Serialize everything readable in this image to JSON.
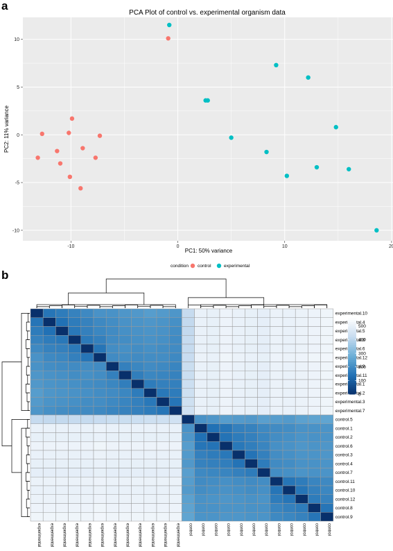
{
  "panels": {
    "a": "a",
    "b": "b"
  },
  "chart_data": [
    {
      "type": "scatter",
      "title": "PCA Plot of control vs. experimental organism data",
      "xlabel": "PC1: 50% variance",
      "ylabel": "PC2: 11% variance",
      "xlim": [
        -14.5,
        20.2
      ],
      "ylim": [
        -11.1,
        12.3
      ],
      "xticks": [
        -10,
        0,
        10,
        20
      ],
      "yticks": [
        -10,
        -5,
        0,
        5,
        10
      ],
      "grid": true,
      "background": "#ebebeb",
      "legend": {
        "title": "condition",
        "position": "bottom"
      },
      "series": [
        {
          "name": "control",
          "color": "#f8766d",
          "points": [
            [
              -0.9,
              10.1
            ],
            [
              -12.7,
              0.1
            ],
            [
              -10.2,
              0.2
            ],
            [
              -9.9,
              1.7
            ],
            [
              -7.3,
              -0.1
            ],
            [
              -11.3,
              -1.7
            ],
            [
              -8.9,
              -1.4
            ],
            [
              -13.1,
              -2.4
            ],
            [
              -7.7,
              -2.4
            ],
            [
              -11.0,
              -3.0
            ],
            [
              -10.1,
              -4.4
            ],
            [
              -9.1,
              -5.6
            ]
          ]
        },
        {
          "name": "experimental",
          "color": "#00bfc4",
          "points": [
            [
              -0.8,
              11.5
            ],
            [
              9.2,
              7.3
            ],
            [
              12.2,
              6.0
            ],
            [
              2.6,
              3.6
            ],
            [
              2.8,
              3.6
            ],
            [
              14.8,
              0.8
            ],
            [
              5.0,
              -0.3
            ],
            [
              8.3,
              -1.8
            ],
            [
              13.0,
              -3.4
            ],
            [
              16.0,
              -3.6
            ],
            [
              10.2,
              -4.3
            ],
            [
              18.6,
              -10.0
            ]
          ]
        }
      ]
    },
    {
      "type": "heatmap",
      "rows": [
        "experimental.10",
        "experimental.4",
        "experimental.5",
        "experimental.8",
        "experimental.6",
        "experimental.12",
        "experimental.9",
        "experimental.11",
        "experimental.1",
        "experimental.2",
        "experimental.3",
        "experimental.7",
        "control.5",
        "control.1",
        "control.2",
        "control.6",
        "control.3",
        "control.4",
        "control.7",
        "control.11",
        "control.10",
        "control.12",
        "control.8",
        "control.9"
      ],
      "columns": [
        "experimental",
        "experimental",
        "experimental",
        "experimental",
        "experimental",
        "experimental",
        "experimental",
        "experimental",
        "experimental",
        "experimental",
        "experimental",
        "experimental",
        "control",
        "control",
        "control",
        "control",
        "control",
        "control",
        "control",
        "control",
        "control",
        "control",
        "control",
        "control"
      ],
      "colorbar": {
        "ticks": [
          0,
          100,
          200,
          300,
          400,
          500
        ],
        "min": 0,
        "max": 560,
        "colors": [
          "#08306b",
          "#2171b5",
          "#6baed6",
          "#c6dbef",
          "#ffffff"
        ]
      },
      "note": "distance matrix; values estimated from cell shading",
      "values": [
        [
          0,
          150,
          165,
          180,
          195,
          215,
          215,
          225,
          230,
          240,
          235,
          225,
          420,
          505,
          500,
          515,
          505,
          500,
          495,
          510,
          505,
          510,
          515,
          520
        ],
        [
          150,
          0,
          140,
          165,
          180,
          195,
          205,
          215,
          220,
          225,
          220,
          210,
          415,
          505,
          500,
          515,
          505,
          500,
          495,
          510,
          505,
          510,
          515,
          520
        ],
        [
          165,
          140,
          0,
          155,
          175,
          190,
          200,
          210,
          215,
          220,
          215,
          205,
          415,
          505,
          500,
          515,
          505,
          500,
          495,
          510,
          505,
          510,
          515,
          520
        ],
        [
          180,
          165,
          155,
          0,
          160,
          175,
          200,
          205,
          210,
          215,
          210,
          200,
          420,
          505,
          500,
          515,
          505,
          500,
          495,
          510,
          505,
          510,
          515,
          520
        ],
        [
          195,
          180,
          175,
          160,
          0,
          150,
          205,
          210,
          205,
          210,
          205,
          200,
          420,
          505,
          500,
          515,
          505,
          500,
          495,
          510,
          505,
          510,
          515,
          520
        ],
        [
          215,
          195,
          190,
          175,
          150,
          0,
          200,
          205,
          200,
          205,
          205,
          195,
          425,
          510,
          505,
          520,
          510,
          505,
          500,
          515,
          510,
          515,
          520,
          525
        ],
        [
          215,
          205,
          200,
          200,
          205,
          200,
          0,
          175,
          190,
          200,
          195,
          185,
          430,
          505,
          500,
          515,
          505,
          500,
          495,
          510,
          505,
          510,
          515,
          520
        ],
        [
          225,
          215,
          210,
          205,
          210,
          205,
          175,
          0,
          170,
          190,
          185,
          180,
          430,
          505,
          500,
          515,
          505,
          500,
          495,
          510,
          505,
          510,
          515,
          520
        ],
        [
          230,
          220,
          215,
          210,
          205,
          200,
          190,
          170,
          0,
          165,
          175,
          175,
          435,
          505,
          500,
          515,
          505,
          500,
          495,
          510,
          505,
          510,
          515,
          520
        ],
        [
          240,
          225,
          220,
          215,
          210,
          205,
          200,
          190,
          165,
          0,
          155,
          165,
          440,
          505,
          500,
          515,
          505,
          500,
          495,
          510,
          505,
          510,
          515,
          520
        ],
        [
          235,
          220,
          215,
          210,
          205,
          205,
          195,
          185,
          175,
          155,
          0,
          150,
          440,
          505,
          500,
          515,
          505,
          500,
          495,
          510,
          505,
          510,
          515,
          520
        ],
        [
          225,
          210,
          205,
          200,
          200,
          195,
          185,
          180,
          175,
          165,
          150,
          0,
          445,
          505,
          500,
          515,
          505,
          500,
          495,
          510,
          505,
          510,
          515,
          520
        ],
        [
          420,
          415,
          415,
          420,
          420,
          425,
          430,
          430,
          435,
          440,
          440,
          445,
          0,
          215,
          225,
          240,
          235,
          230,
          245,
          240,
          235,
          250,
          255,
          260
        ],
        [
          505,
          505,
          505,
          505,
          505,
          510,
          505,
          505,
          505,
          505,
          505,
          505,
          215,
          0,
          140,
          150,
          175,
          180,
          195,
          200,
          205,
          215,
          215,
          220
        ],
        [
          500,
          500,
          500,
          500,
          500,
          505,
          500,
          500,
          500,
          500,
          500,
          500,
          225,
          140,
          0,
          145,
          165,
          175,
          190,
          205,
          210,
          220,
          215,
          220
        ],
        [
          515,
          515,
          515,
          515,
          515,
          520,
          515,
          515,
          515,
          515,
          515,
          515,
          240,
          150,
          145,
          0,
          155,
          170,
          185,
          210,
          215,
          225,
          220,
          225
        ],
        [
          505,
          505,
          505,
          505,
          505,
          510,
          505,
          505,
          505,
          505,
          505,
          505,
          235,
          175,
          165,
          155,
          0,
          145,
          175,
          205,
          210,
          220,
          220,
          225
        ],
        [
          500,
          500,
          500,
          500,
          500,
          505,
          500,
          500,
          500,
          500,
          500,
          500,
          230,
          180,
          175,
          170,
          145,
          0,
          165,
          200,
          205,
          215,
          215,
          220
        ],
        [
          495,
          495,
          495,
          495,
          495,
          500,
          495,
          495,
          495,
          495,
          495,
          495,
          245,
          195,
          190,
          185,
          175,
          165,
          0,
          205,
          210,
          220,
          215,
          220
        ],
        [
          510,
          510,
          510,
          510,
          510,
          515,
          510,
          510,
          510,
          510,
          510,
          510,
          240,
          200,
          205,
          210,
          205,
          200,
          205,
          0,
          150,
          165,
          185,
          195
        ],
        [
          505,
          505,
          505,
          505,
          505,
          510,
          505,
          505,
          505,
          505,
          505,
          505,
          235,
          205,
          210,
          215,
          210,
          205,
          210,
          150,
          0,
          150,
          175,
          190
        ],
        [
          510,
          510,
          510,
          510,
          510,
          515,
          510,
          510,
          510,
          510,
          510,
          510,
          250,
          215,
          220,
          225,
          220,
          215,
          220,
          165,
          150,
          0,
          165,
          180
        ],
        [
          515,
          515,
          515,
          515,
          515,
          520,
          515,
          515,
          515,
          515,
          515,
          515,
          255,
          215,
          215,
          220,
          220,
          215,
          215,
          185,
          175,
          165,
          0,
          150
        ],
        [
          520,
          520,
          520,
          520,
          520,
          525,
          520,
          520,
          520,
          520,
          520,
          520,
          260,
          220,
          220,
          225,
          225,
          220,
          220,
          195,
          190,
          180,
          150,
          0
        ]
      ]
    }
  ]
}
